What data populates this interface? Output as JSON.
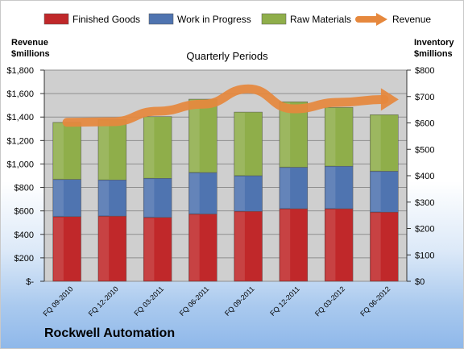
{
  "company": "Rockwell Automation",
  "chart_data": {
    "type": "bar",
    "stacked": true,
    "title": "Quarterly Periods",
    "left_axis_label": [
      "Revenue",
      "$millions"
    ],
    "right_axis_label": [
      "Inventory",
      "$millions"
    ],
    "categories": [
      "FQ 09-2010",
      "FQ 12-2010",
      "FQ 03-2011",
      "FQ 06-2011",
      "FQ 09-2011",
      "FQ 12-2011",
      "FQ 03-2012",
      "FQ 06-2012"
    ],
    "left_ylim": [
      0,
      1800
    ],
    "left_ticks": [
      "$-",
      "$200",
      "$400",
      "$600",
      "$800",
      "$1,000",
      "$1,200",
      "$1,400",
      "$1,600",
      "$1,800"
    ],
    "right_ylim": [
      0,
      800
    ],
    "right_ticks": [
      "$0",
      "$100",
      "$200",
      "$300",
      "$400",
      "$500",
      "$600",
      "$700",
      "$800"
    ],
    "grid": true,
    "legend_position": "top",
    "series": [
      {
        "name": "Finished Goods",
        "axis": "right",
        "color": "#c0282a",
        "values": [
          245,
          247,
          242,
          255,
          265,
          275,
          275,
          262
        ]
      },
      {
        "name": "Work in Progress",
        "axis": "right",
        "color": "#4f74b0",
        "values": [
          141,
          137,
          148,
          157,
          135,
          157,
          161,
          155
        ]
      },
      {
        "name": "Raw Materials",
        "axis": "right",
        "color": "#8fae4a",
        "values": [
          216,
          228,
          234,
          278,
          241,
          248,
          223,
          214
        ]
      },
      {
        "name": "Revenue",
        "axis": "left",
        "type": "line",
        "color": "#e6883d",
        "values": [
          1355,
          1360,
          1450,
          1510,
          1640,
          1470,
          1525,
          1550
        ]
      }
    ]
  }
}
